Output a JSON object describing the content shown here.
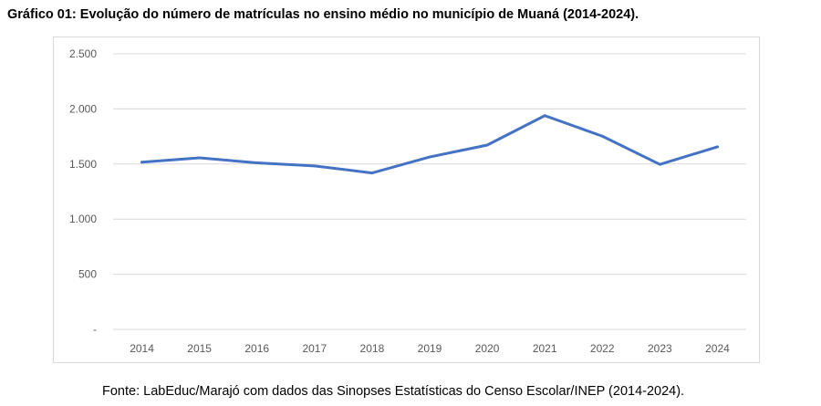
{
  "title": "Gráfico 01: Evolução do número de matrículas no ensino médio no município de Muaná (2014-2024).",
  "source": "Fonte: LabEduc/Marajó com dados das Sinopses Estatísticas do Censo Escolar/INEP (2014-2024).",
  "chart_data": {
    "type": "line",
    "title": "",
    "xlabel": "",
    "ylabel": "",
    "categories": [
      "2014",
      "2015",
      "2016",
      "2017",
      "2018",
      "2019",
      "2020",
      "2021",
      "2022",
      "2023",
      "2024"
    ],
    "series": [
      {
        "values": [
          1517,
          1556,
          1511,
          1483,
          1419,
          1564,
          1672,
          1939,
          1753,
          1497,
          1656
        ],
        "color": "#4472C4"
      }
    ],
    "ylim": [
      0,
      2500
    ],
    "yticks": [
      0,
      500,
      1000,
      1500,
      2000,
      2500
    ],
    "ytick_labels": [
      "-",
      "500",
      "1.000",
      "1.500",
      "2.000",
      "2.500"
    ],
    "grid": true,
    "legend": "none"
  }
}
